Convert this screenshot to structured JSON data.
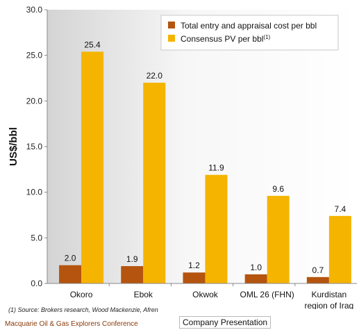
{
  "chart_data": {
    "type": "bar",
    "categories": [
      "Okoro",
      "Ebok",
      "Okwok",
      "OML 26 (FHN)",
      [
        "Kurdistan",
        "region of Iraq"
      ]
    ],
    "series": [
      {
        "name": "Total entry and appraisal cost per bbl",
        "values": [
          2.0,
          1.9,
          1.2,
          1.0,
          0.7
        ],
        "color": "#b5540e",
        "labels": [
          "2.0",
          "1.9",
          "1.2",
          "1.0",
          "0.7"
        ]
      },
      {
        "name": "Consensus PV per bbl",
        "name_sup": "(1)",
        "values": [
          25.4,
          22.0,
          11.9,
          9.6,
          7.4
        ],
        "color": "#f5b400",
        "labels": [
          "25.4",
          "22.0",
          "11.9",
          "9.6",
          "7.4"
        ]
      }
    ],
    "ylabel": "US$/bbl",
    "ylim": [
      0,
      30
    ],
    "yticks": [
      "0.0",
      "5.0",
      "10.0",
      "15.0",
      "20.0",
      "25.0",
      "30.0"
    ],
    "legend": "top-right",
    "grid": false
  },
  "footer": {
    "source": "(1) Source: Brokers research, Wood Mackenzie, Afren",
    "conference": "Macquarie Oil & Gas Explorers Conference",
    "presentation": "Company Presentation"
  }
}
